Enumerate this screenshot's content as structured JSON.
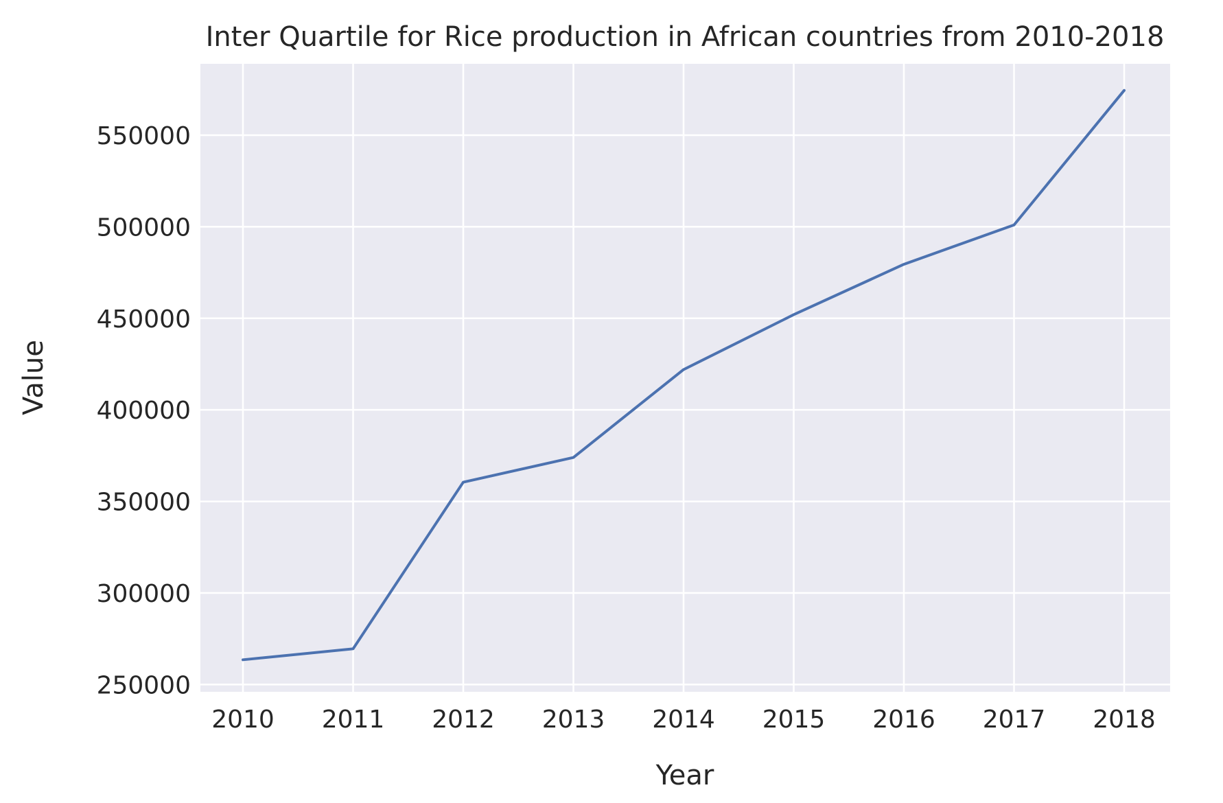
{
  "chart_data": {
    "type": "line",
    "title": "Inter Quartile for Rice production in African countries from 2010-2018",
    "xlabel": "Year",
    "ylabel": "Value",
    "x": [
      "2010",
      "2011",
      "2012",
      "2013",
      "2014",
      "2015",
      "2016",
      "2017",
      "2018"
    ],
    "series": [
      {
        "values": [
          263500,
          269500,
          360500,
          374000,
          422000,
          452000,
          479500,
          501000,
          574500
        ]
      }
    ],
    "yticks": [
      "250000",
      "300000",
      "350000",
      "400000",
      "450000",
      "500000",
      "550000"
    ],
    "ylim": [
      246000,
      589000
    ],
    "grid": true,
    "legend": "none",
    "colors": {
      "line": "#4c72b0",
      "plot_background": "#eaeaf2",
      "grid": "#ffffff",
      "text": "#262626"
    }
  }
}
